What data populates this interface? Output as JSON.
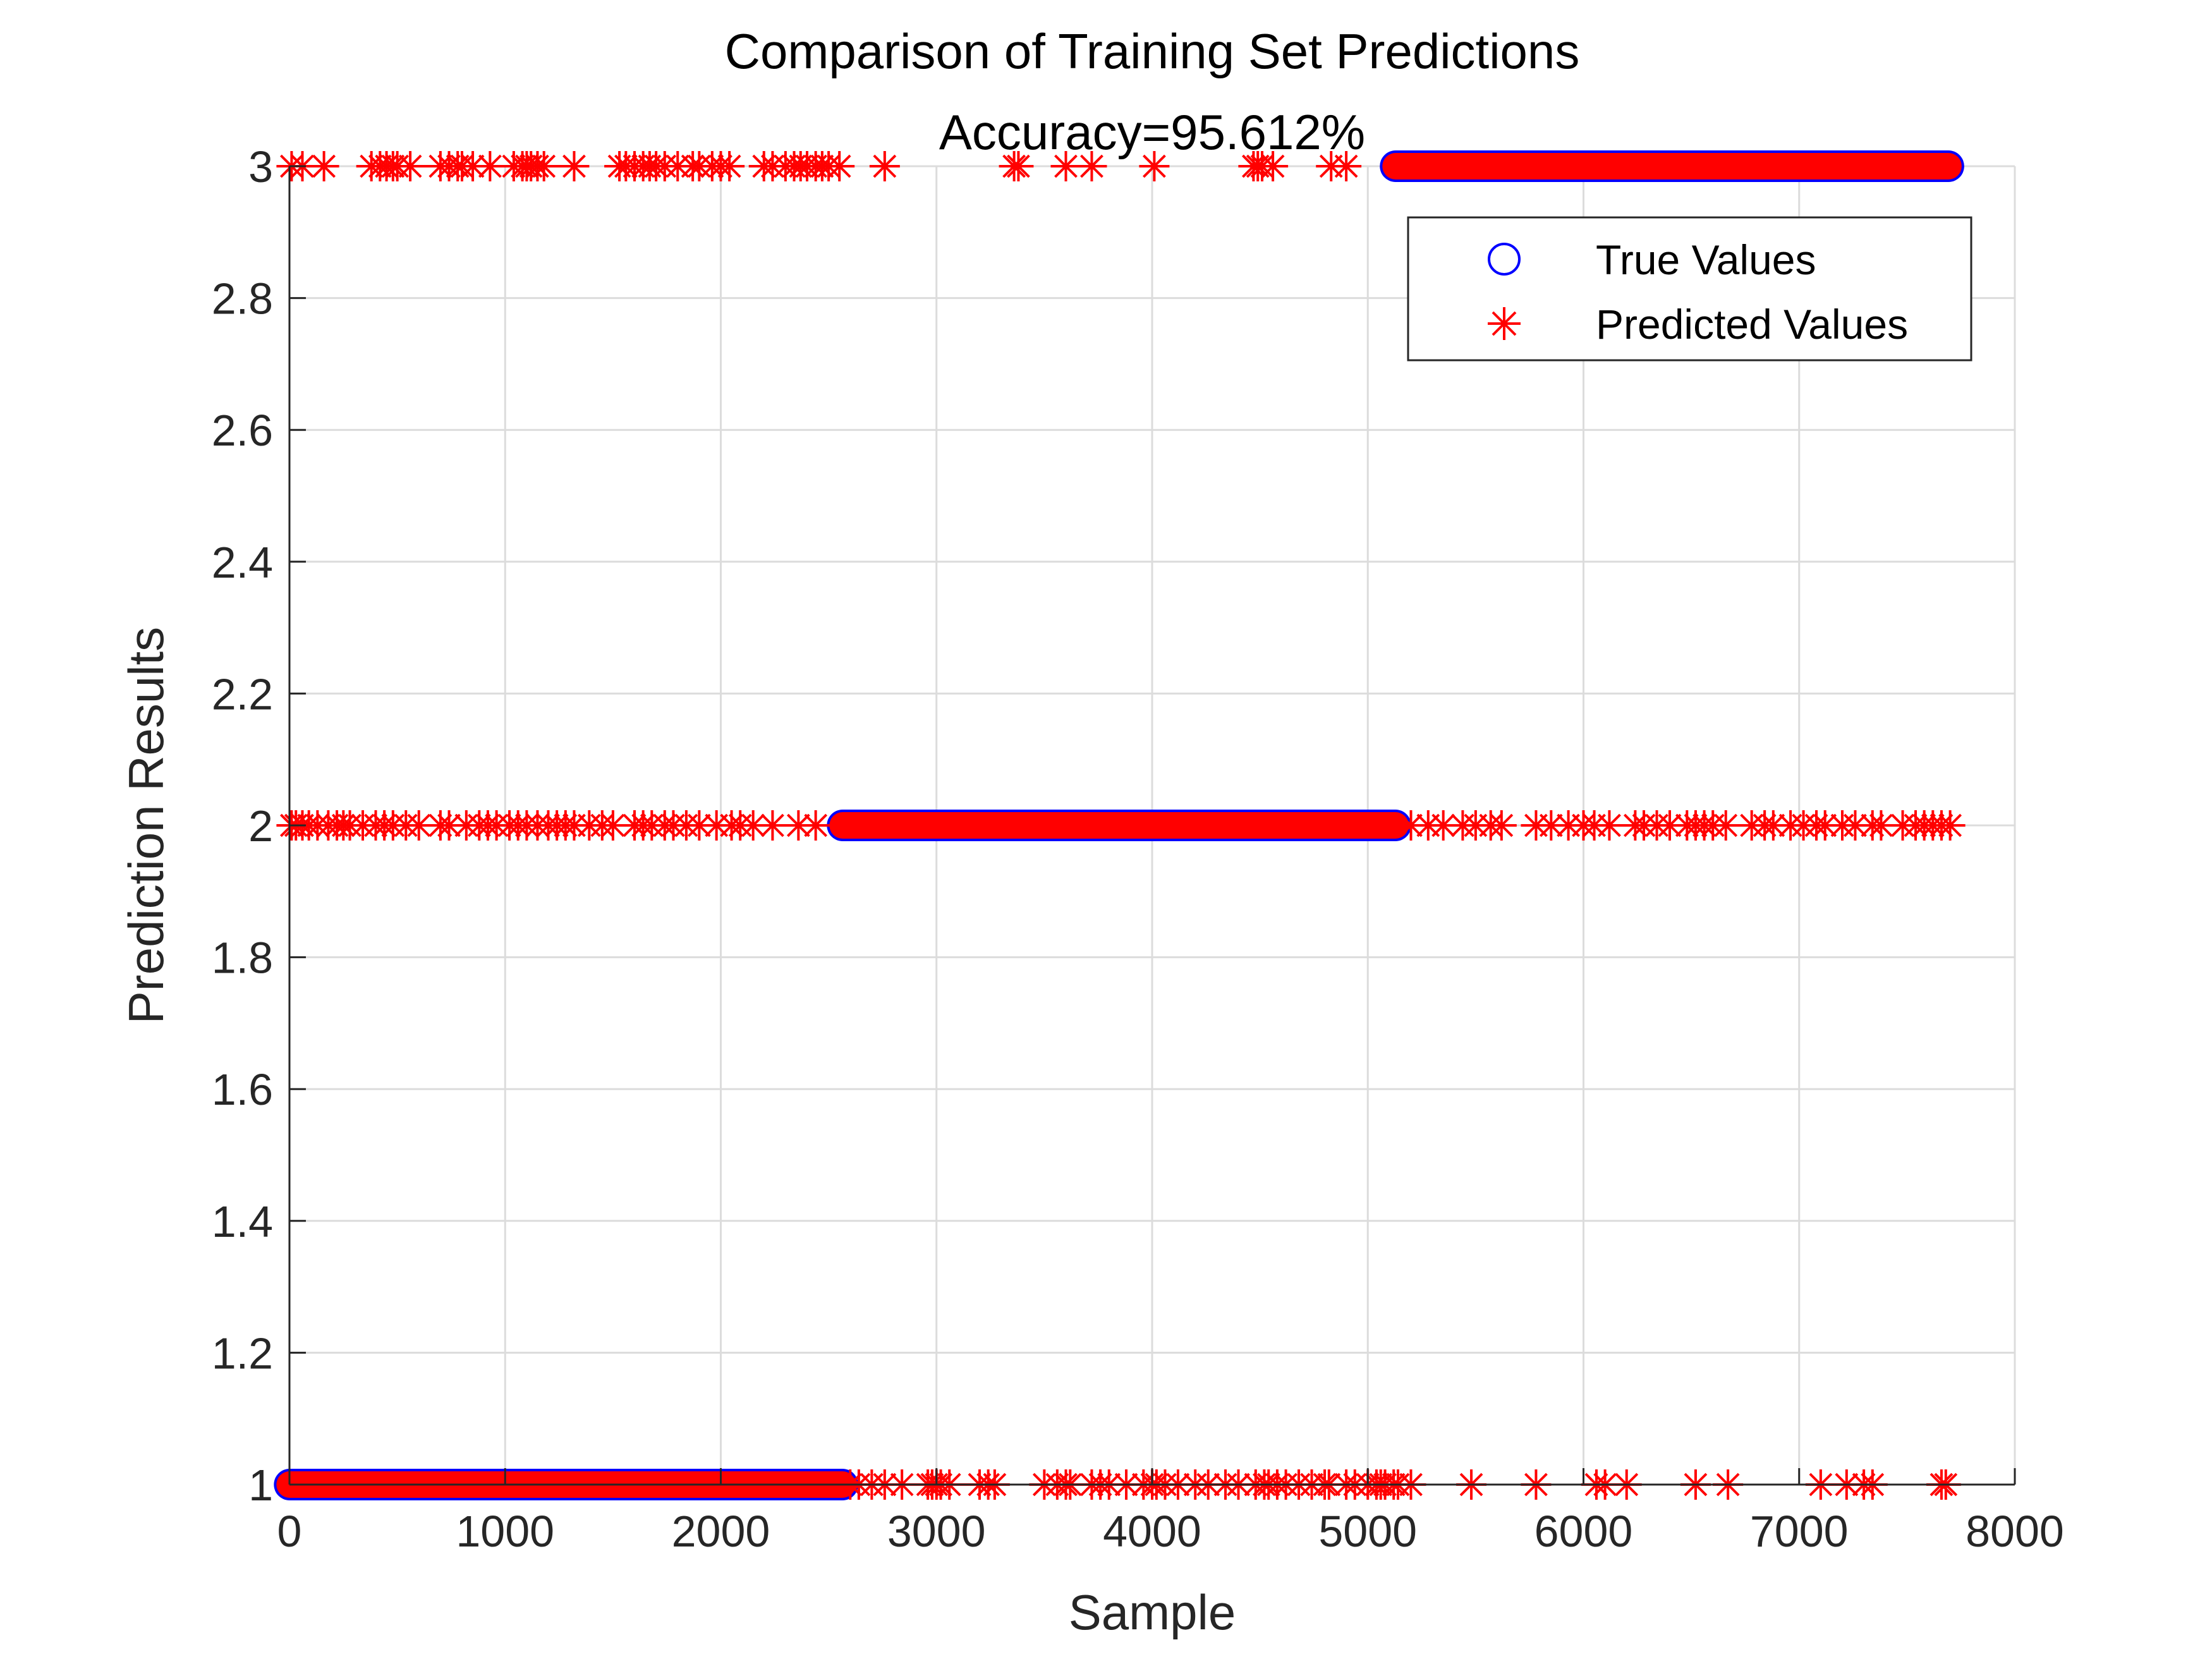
{
  "chart_data": {
    "type": "scatter",
    "title": "Comparison of Training Set Predictions",
    "subtitle": "Accuracy=95.612%",
    "xlabel": "Sample",
    "ylabel": "Prediction Results",
    "xlim": [
      0,
      8000
    ],
    "ylim": [
      1,
      3
    ],
    "x_ticks": [
      "0",
      "1000",
      "2000",
      "3000",
      "4000",
      "5000",
      "6000",
      "7000",
      "8000"
    ],
    "y_ticks": [
      "1",
      "1.2",
      "1.4",
      "1.6",
      "1.8",
      "2",
      "2.2",
      "2.4",
      "2.6",
      "2.8",
      "3"
    ],
    "grid": true,
    "legend_position": "top-right",
    "series": [
      {
        "name": "True Values",
        "marker": "circle",
        "color": "#0000ff",
        "segments": [
          {
            "x_start": 1,
            "x_end": 2564,
            "y": 1
          },
          {
            "x_start": 2565,
            "x_end": 5128,
            "y": 2
          },
          {
            "x_start": 5129,
            "x_end": 7692,
            "y": 3
          }
        ]
      },
      {
        "name": "Predicted Values",
        "marker": "asterisk",
        "color": "#ff0000",
        "segments": [
          {
            "x_start": 1,
            "x_end": 2564,
            "y": 1
          },
          {
            "x_start": 2565,
            "x_end": 5128,
            "y": 2
          },
          {
            "x_start": 5129,
            "x_end": 7692,
            "y": 3
          }
        ],
        "misclassified": [
          {
            "y": 3,
            "x": [
              10,
              60,
              160,
              380,
              420,
              450,
              480,
              500,
              560,
              700,
              740,
              780,
              800,
              850,
              930,
              1040,
              1080,
              1100,
              1120,
              1150,
              1180,
              1320,
              1530,
              1560,
              1600,
              1640,
              1670,
              1700,
              1740,
              1800,
              1870,
              1900,
              1960,
              2000,
              2040,
              2200,
              2240,
              2300,
              2340,
              2370,
              2400,
              2440,
              2470,
              2500,
              2550,
              2760,
              3360,
              3380,
              3600,
              3720,
              4010,
              4470,
              4490,
              4510,
              4560,
              4830,
              4900
            ]
          },
          {
            "y": 2,
            "x": [
              10,
              30,
              60,
              90,
              130,
              180,
              220,
              250,
              280,
              340,
              400,
              440,
              480,
              540,
              600,
              700,
              740,
              820,
              880,
              920,
              960,
              1020,
              1060,
              1100,
              1150,
              1200,
              1240,
              1280,
              1320,
              1390,
              1450,
              1500,
              1600,
              1640,
              1680,
              1740,
              1780,
              1840,
              1900,
              1980,
              2050,
              2090,
              2150,
              2240,
              2360,
              2440,
              5200,
              5280,
              5350,
              5440,
              5500,
              5570,
              5620,
              5780,
              5850,
              5930,
              6000,
              6050,
              6120,
              6240,
              6280,
              6340,
              6400,
              6480,
              6520,
              6560,
              6600,
              6660,
              6780,
              6840,
              6880,
              6960,
              7020,
              7080,
              7120,
              7200,
              7260,
              7340,
              7380,
              7480,
              7540,
              7580,
              7620,
              7660,
              7700
            ]
          },
          {
            "y": 1,
            "x": [
              2600,
              2640,
              2700,
              2760,
              2840,
              2960,
              2980,
              3000,
              3020,
              3060,
              3200,
              3240,
              3270,
              3500,
              3560,
              3600,
              3620,
              3720,
              3760,
              3800,
              3880,
              3960,
              4000,
              4020,
              4060,
              4120,
              4200,
              4260,
              4340,
              4400,
              4480,
              4520,
              4540,
              4580,
              4620,
              4680,
              4740,
              4800,
              4820,
              4900,
              4940,
              5000,
              5040,
              5060,
              5080,
              5120,
              5140,
              5200,
              5480,
              5780,
              6060,
              6100,
              6200,
              6520,
              6670,
              7100,
              7220,
              7300,
              7340,
              7660,
              7680
            ]
          }
        ]
      }
    ]
  }
}
